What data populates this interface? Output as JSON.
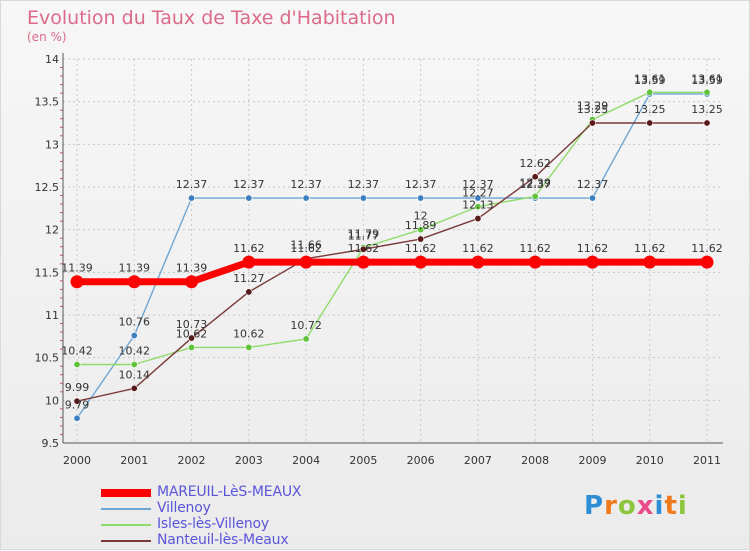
{
  "header": {
    "title": "Evolution du Taux de Taxe d'Habitation",
    "subtitle": "(en %)"
  },
  "logo": {
    "text": "Proxiti",
    "letters": [
      {
        "ch": "P",
        "color": "#2d8ed6"
      },
      {
        "ch": "r",
        "color": "#f07a1a"
      },
      {
        "ch": "o",
        "color": "#8cc63f"
      },
      {
        "ch": "x",
        "color": "#e94b8a"
      },
      {
        "ch": "i",
        "color": "#2d8ed6"
      },
      {
        "ch": "t",
        "color": "#f07a1a"
      },
      {
        "ch": "i",
        "color": "#8cc63f"
      }
    ]
  },
  "chart_data": {
    "type": "line",
    "title": "Evolution du Taux de Taxe d'Habitation",
    "ylabel": "(en %)",
    "xlabel": "",
    "ylim": [
      9.5,
      14
    ],
    "yticks": [
      9.5,
      10,
      10.5,
      11,
      11.5,
      12,
      12.5,
      13,
      13.5,
      14
    ],
    "x": [
      "2000",
      "2001",
      "2002",
      "2003",
      "2004",
      "2005",
      "2006",
      "2007",
      "2008",
      "2009",
      "2010",
      "2011"
    ],
    "grid": true,
    "legend_position": "bottom-left",
    "series": [
      {
        "name": "MAREUIL-LèS-MEAUX",
        "color": "#ff0000",
        "values": [
          11.39,
          11.39,
          11.39,
          11.62,
          11.62,
          11.62,
          11.62,
          11.62,
          11.62,
          11.62,
          11.62,
          11.62
        ],
        "labels": [
          "11.39",
          "11.39",
          "11.39",
          "11.62",
          "11.62",
          "11.62",
          "11.62",
          "11.62",
          "11.62",
          "11.62",
          "11.62",
          "11.62"
        ]
      },
      {
        "name": "Villenoy",
        "color": "#6ea6d4",
        "marker": "#3c7fc0",
        "values": [
          9.79,
          10.76,
          12.37,
          12.37,
          12.37,
          12.37,
          12.37,
          12.37,
          12.37,
          12.37,
          13.59,
          13.59
        ],
        "labels": [
          "9.79",
          "10.76",
          "12.37",
          "12.37",
          "12.37",
          "12.37",
          "12.37",
          "12.37",
          "12.37",
          "12.37",
          "13.59",
          "13.59"
        ]
      },
      {
        "name": "Isles-lès-Villenoy",
        "color": "#8fdb6a",
        "marker": "#5fc23a",
        "values": [
          10.42,
          10.42,
          10.62,
          10.62,
          10.72,
          11.79,
          12,
          12.27,
          12.39,
          13.29,
          13.61,
          13.61
        ],
        "labels": [
          "10.42",
          "10.42",
          "10.62",
          "10.62",
          "10.72",
          "11.79",
          "12",
          "12.27",
          "12.39",
          "13.29",
          "13.61",
          "13.61"
        ]
      },
      {
        "name": "Nanteuil-lès-Meaux",
        "color": "#7a3a3a",
        "marker": "#5a1a1a",
        "values": [
          9.99,
          10.14,
          10.73,
          11.27,
          11.66,
          11.77,
          11.89,
          12.13,
          12.62,
          13.25,
          13.25,
          13.25
        ],
        "labels": [
          "9.99",
          "10.14",
          "10.73",
          "11.27",
          "11.66",
          "11.77",
          "11.89",
          "12.13",
          "12.62",
          "13.25",
          "13.25",
          "13.25"
        ]
      }
    ]
  }
}
